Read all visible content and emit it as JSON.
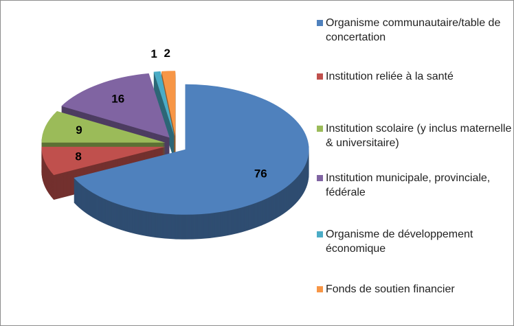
{
  "chart_data": {
    "type": "pie",
    "categories": [
      "Organisme communautaire/table de concertation",
      "Institution reliée à la santé",
      "Institution scolaire (y inclus maternelle & universitaire)",
      "Institution municipale, provinciale, fédérale",
      "Organisme de développement économique",
      "Fonds de soutien financier"
    ],
    "values": [
      76,
      8,
      9,
      16,
      1,
      2
    ],
    "colors": [
      "#4f81bd",
      "#c0504d",
      "#9bbb59",
      "#8064a2",
      "#4bacc6",
      "#f79646"
    ],
    "legend": "right"
  }
}
